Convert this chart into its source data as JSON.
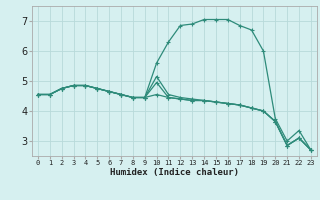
{
  "xlabel": "Humidex (Indice chaleur)",
  "ylabel": "",
  "background_color": "#d6f0f0",
  "grid_color": "#b8dada",
  "line_color": "#2e8b7a",
  "xlim": [
    -0.5,
    23.5
  ],
  "ylim": [
    2.5,
    7.5
  ],
  "yticks": [
    3,
    4,
    5,
    6,
    7
  ],
  "xticks": [
    0,
    1,
    2,
    3,
    4,
    5,
    6,
    7,
    8,
    9,
    10,
    11,
    12,
    13,
    14,
    15,
    16,
    17,
    18,
    19,
    20,
    21,
    22,
    23
  ],
  "curves": [
    [
      4.55,
      4.55,
      4.75,
      4.85,
      4.85,
      4.75,
      4.65,
      4.55,
      4.45,
      4.45,
      5.6,
      6.3,
      6.85,
      6.9,
      7.05,
      7.05,
      7.05,
      6.85,
      6.7,
      6.0,
      3.75,
      3.0,
      3.35,
      2.7
    ],
    [
      4.55,
      4.55,
      4.75,
      4.85,
      4.85,
      4.75,
      4.65,
      4.55,
      4.45,
      4.45,
      4.55,
      4.45,
      4.4,
      4.35,
      4.35,
      4.3,
      4.25,
      4.2,
      4.1,
      4.0,
      3.65,
      2.85,
      3.1,
      2.7
    ],
    [
      4.55,
      4.55,
      4.75,
      4.85,
      4.85,
      4.75,
      4.65,
      4.55,
      4.45,
      4.45,
      4.95,
      4.45,
      4.4,
      4.35,
      4.35,
      4.3,
      4.25,
      4.2,
      4.1,
      4.0,
      3.65,
      2.85,
      3.1,
      2.7
    ],
    [
      4.55,
      4.55,
      4.75,
      4.85,
      4.85,
      4.75,
      4.65,
      4.55,
      4.45,
      4.45,
      5.15,
      4.55,
      4.45,
      4.4,
      4.35,
      4.3,
      4.25,
      4.2,
      4.1,
      4.0,
      3.65,
      2.85,
      3.1,
      2.7
    ]
  ]
}
